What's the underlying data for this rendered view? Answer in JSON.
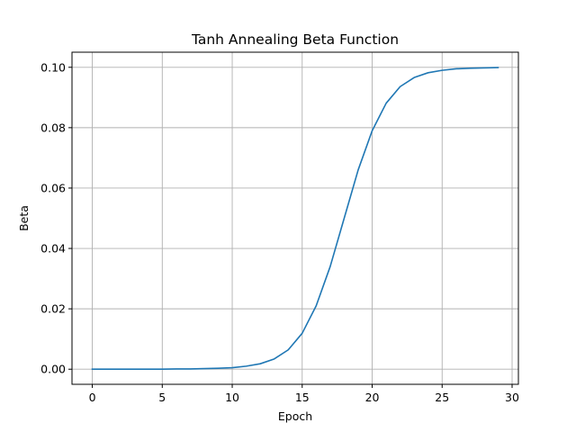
{
  "chart_data": {
    "type": "line",
    "title": "Tanh Annealing Beta Function",
    "xlabel": "Epoch",
    "ylabel": "Beta",
    "xlim": [
      -1.45,
      30.45
    ],
    "ylim": [
      -0.005,
      0.105
    ],
    "xticks": [
      0,
      5,
      10,
      15,
      20,
      25,
      30
    ],
    "xtick_labels": [
      "0",
      "5",
      "10",
      "15",
      "20",
      "25",
      "30"
    ],
    "yticks": [
      0.0,
      0.02,
      0.04,
      0.06,
      0.08,
      0.1
    ],
    "ytick_labels": [
      "0.00",
      "0.02",
      "0.04",
      "0.06",
      "0.08",
      "0.10"
    ],
    "grid": true,
    "line_color": "#1f77b4",
    "grid_color": "#b0b0b0",
    "series": [
      {
        "x": [
          0,
          1,
          2,
          3,
          4,
          5,
          6,
          7,
          8,
          9,
          10,
          11,
          12,
          13,
          14,
          15,
          16,
          17,
          18,
          19,
          20,
          21,
          22,
          23,
          24,
          25,
          26,
          27,
          28,
          29
        ],
        "y": [
          0.0,
          0.0,
          0.0,
          0.0,
          0.0,
          0.0,
          0.0001,
          0.0001,
          0.0002,
          0.0003,
          0.0005,
          0.001,
          0.0018,
          0.0034,
          0.0064,
          0.0119,
          0.021,
          0.034,
          0.05,
          0.066,
          0.079,
          0.0881,
          0.0936,
          0.0966,
          0.0982,
          0.099,
          0.0995,
          0.0997,
          0.0998,
          0.0999
        ]
      }
    ]
  }
}
